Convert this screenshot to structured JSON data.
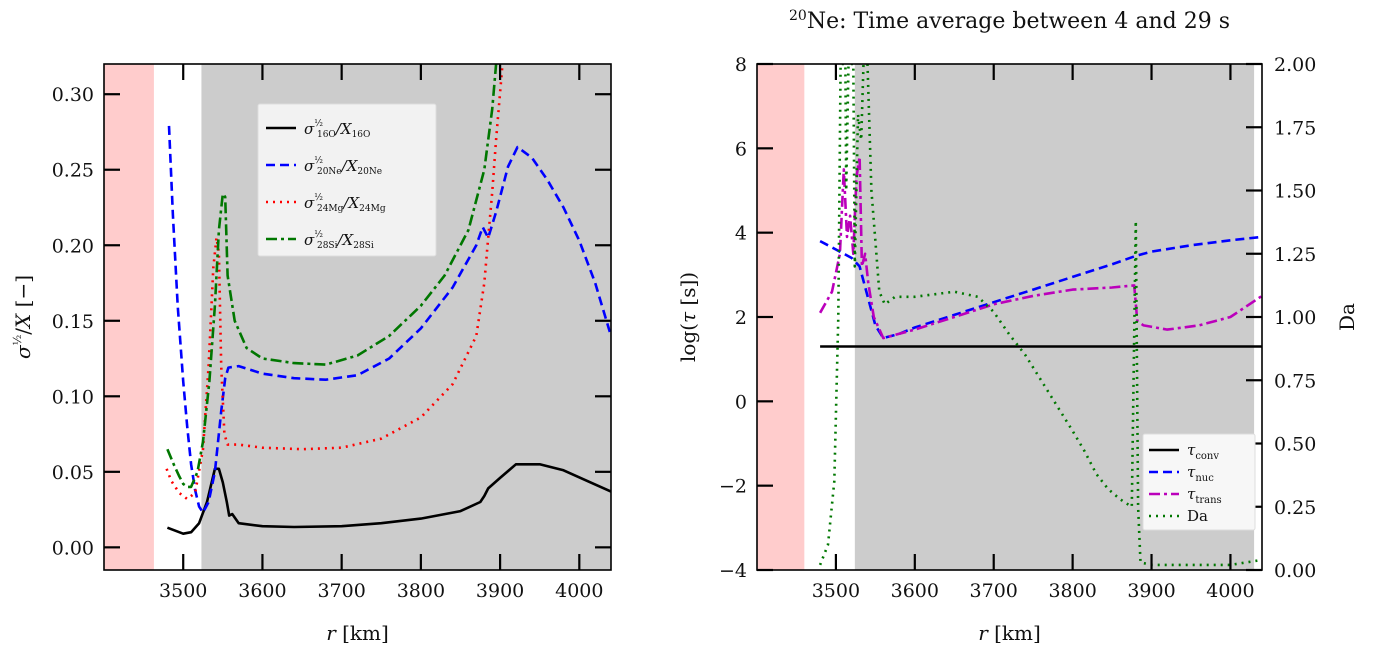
{
  "chart_data": [
    {
      "type": "line",
      "title": "",
      "xlabel": "r [km]",
      "ylabel": "σ^{1/2}/X [−]",
      "xlim": [
        3400,
        4040
      ],
      "ylim": [
        -0.015,
        0.32
      ],
      "xticks": [
        3500,
        3600,
        3700,
        3800,
        3900,
        4000
      ],
      "xtick_labels": [
        "3500",
        "3600",
        "3700",
        "3800",
        "3900",
        "4000"
      ],
      "yticks": [
        0.0,
        0.05,
        0.1,
        0.15,
        0.2,
        0.25,
        0.3
      ],
      "ytick_labels": [
        "0.00",
        "0.05",
        "0.10",
        "0.15",
        "0.20",
        "0.25",
        "0.30"
      ],
      "regions": [
        {
          "x0": 3400,
          "x1": 3463,
          "color": "#ffcccc"
        },
        {
          "x0": 3523,
          "x1": 4040,
          "color": "#cccccc"
        }
      ],
      "legend_position": "upper-center",
      "series": [
        {
          "name": "σ^{1/2}_{16O}/X_{16O}",
          "legend": {
            "main": "σ",
            "sup": "½",
            "sub": "16O",
            "tail": "/X",
            "tail_sub": "16O"
          },
          "color": "#000000",
          "dash": "",
          "points": [
            [
              3480,
              0.013
            ],
            [
              3490,
              0.011
            ],
            [
              3500,
              0.009
            ],
            [
              3510,
              0.01
            ],
            [
              3520,
              0.016
            ],
            [
              3530,
              0.03
            ],
            [
              3540,
              0.052
            ],
            [
              3545,
              0.052
            ],
            [
              3550,
              0.043
            ],
            [
              3555,
              0.03
            ],
            [
              3558,
              0.021
            ],
            [
              3562,
              0.022
            ],
            [
              3570,
              0.016
            ],
            [
              3600,
              0.014
            ],
            [
              3640,
              0.0135
            ],
            [
              3700,
              0.014
            ],
            [
              3750,
              0.016
            ],
            [
              3800,
              0.019
            ],
            [
              3850,
              0.024
            ],
            [
              3875,
              0.03
            ],
            [
              3880,
              0.034
            ],
            [
              3885,
              0.039
            ],
            [
              3900,
              0.046
            ],
            [
              3920,
              0.055
            ],
            [
              3950,
              0.055
            ],
            [
              3980,
              0.051
            ],
            [
              4010,
              0.044
            ],
            [
              4040,
              0.037
            ]
          ]
        },
        {
          "name": "σ^{1/2}_{20Ne}/X_{20Ne}",
          "legend": {
            "main": "σ",
            "sup": "½",
            "sub": "20Ne",
            "tail": "/X",
            "tail_sub": "20Ne"
          },
          "color": "#0000ff",
          "dash": "9,5",
          "points": [
            [
              3482,
              0.279
            ],
            [
              3487,
              0.22
            ],
            [
              3493,
              0.16
            ],
            [
              3500,
              0.11
            ],
            [
              3505,
              0.08
            ],
            [
              3510,
              0.055
            ],
            [
              3515,
              0.038
            ],
            [
              3520,
              0.027
            ],
            [
              3525,
              0.023
            ],
            [
              3532,
              0.03
            ],
            [
              3540,
              0.05
            ],
            [
              3548,
              0.09
            ],
            [
              3553,
              0.112
            ],
            [
              3557,
              0.119
            ],
            [
              3570,
              0.12
            ],
            [
              3600,
              0.115
            ],
            [
              3640,
              0.112
            ],
            [
              3680,
              0.111
            ],
            [
              3720,
              0.114
            ],
            [
              3760,
              0.125
            ],
            [
              3800,
              0.145
            ],
            [
              3840,
              0.172
            ],
            [
              3870,
              0.2
            ],
            [
              3878,
              0.212
            ],
            [
              3885,
              0.205
            ],
            [
              3895,
              0.222
            ],
            [
              3910,
              0.252
            ],
            [
              3922,
              0.265
            ],
            [
              3940,
              0.258
            ],
            [
              3960,
              0.243
            ],
            [
              3980,
              0.225
            ],
            [
              4000,
              0.203
            ],
            [
              4020,
              0.175
            ],
            [
              4040,
              0.14
            ]
          ]
        },
        {
          "name": "σ^{1/2}_{24Mg}/X_{24Mg}",
          "legend": {
            "main": "σ",
            "sup": "½",
            "sub": "24Mg",
            "tail": "/X",
            "tail_sub": "24Mg"
          },
          "color": "#ff0000",
          "dash": "2,5",
          "points": [
            [
              3479,
              0.052
            ],
            [
              3485,
              0.044
            ],
            [
              3495,
              0.036
            ],
            [
              3505,
              0.032
            ],
            [
              3515,
              0.036
            ],
            [
              3525,
              0.065
            ],
            [
              3532,
              0.12
            ],
            [
              3538,
              0.185
            ],
            [
              3542,
              0.205
            ],
            [
              3545,
              0.195
            ],
            [
              3548,
              0.12
            ],
            [
              3552,
              0.075
            ],
            [
              3556,
              0.068
            ],
            [
              3570,
              0.068
            ],
            [
              3600,
              0.066
            ],
            [
              3650,
              0.065
            ],
            [
              3700,
              0.066
            ],
            [
              3750,
              0.072
            ],
            [
              3800,
              0.086
            ],
            [
              3840,
              0.108
            ],
            [
              3870,
              0.14
            ],
            [
              3880,
              0.175
            ],
            [
              3885,
              0.205
            ],
            [
              3890,
              0.235
            ],
            [
              3895,
              0.27
            ],
            [
              3903,
              0.32
            ]
          ]
        },
        {
          "name": "σ^{1/2}_{28Si}/X_{28Si}",
          "legend": {
            "main": "σ",
            "sup": "½",
            "sub": "28Si",
            "tail": "/X",
            "tail_sub": "28Si"
          },
          "color": "#007700",
          "dash": "11,4,3,4",
          "points": [
            [
              3480,
              0.065
            ],
            [
              3488,
              0.055
            ],
            [
              3495,
              0.047
            ],
            [
              3500,
              0.042
            ],
            [
              3505,
              0.04
            ],
            [
              3510,
              0.04
            ],
            [
              3518,
              0.05
            ],
            [
              3525,
              0.07
            ],
            [
              3533,
              0.11
            ],
            [
              3540,
              0.16
            ],
            [
              3545,
              0.21
            ],
            [
              3550,
              0.234
            ],
            [
              3553,
              0.232
            ],
            [
              3556,
              0.18
            ],
            [
              3565,
              0.15
            ],
            [
              3580,
              0.132
            ],
            [
              3600,
              0.125
            ],
            [
              3640,
              0.122
            ],
            [
              3680,
              0.121
            ],
            [
              3720,
              0.127
            ],
            [
              3760,
              0.14
            ],
            [
              3800,
              0.16
            ],
            [
              3830,
              0.18
            ],
            [
              3860,
              0.21
            ],
            [
              3880,
              0.25
            ],
            [
              3890,
              0.29
            ],
            [
              3895,
              0.32
            ]
          ]
        }
      ]
    },
    {
      "type": "line",
      "title": "²⁰Ne: Time average between 4 and 29 s",
      "title_parts": {
        "sup": "20",
        "main": "Ne: Time average between 4 and 29 s"
      },
      "xlabel": "r [km]",
      "ylabel": "log(τ [s])",
      "y2label": "Da",
      "xlim": [
        3400,
        4040
      ],
      "ylim": [
        -4,
        8
      ],
      "y2lim": [
        0,
        2
      ],
      "xticks": [
        3500,
        3600,
        3700,
        3800,
        3900,
        4000
      ],
      "xtick_labels": [
        "3500",
        "3600",
        "3700",
        "3800",
        "3900",
        "4000"
      ],
      "yticks": [
        -4,
        -2,
        0,
        2,
        4,
        6,
        8
      ],
      "ytick_labels": [
        "−4",
        "−2",
        "0",
        "2",
        "4",
        "6",
        "8"
      ],
      "y2ticks": [
        0,
        0.25,
        0.5,
        0.75,
        1.0,
        1.25,
        1.5,
        1.75,
        2.0
      ],
      "y2tick_labels": [
        "0.00",
        "0.25",
        "0.50",
        "0.75",
        "1.00",
        "1.25",
        "1.50",
        "1.75",
        "2.00"
      ],
      "regions": [
        {
          "x0": 3400,
          "x1": 3460,
          "color": "#ffcccc"
        },
        {
          "x0": 3524,
          "x1": 4030,
          "color": "#cccccc"
        }
      ],
      "legend_position": "lower-right",
      "series": [
        {
          "name": "τ_conv",
          "legend": {
            "main": "τ",
            "sub": "conv"
          },
          "color": "#000000",
          "dash": "",
          "axis": "left",
          "points": [
            [
              3480,
              1.3
            ],
            [
              4040,
              1.3
            ]
          ]
        },
        {
          "name": "τ_nuc",
          "legend": {
            "main": "τ",
            "sub": "nuc"
          },
          "color": "#0000ff",
          "dash": "9,5",
          "axis": "left",
          "points": [
            [
              3480,
              3.8
            ],
            [
              3500,
              3.6
            ],
            [
              3520,
              3.4
            ],
            [
              3530,
              3.2
            ],
            [
              3540,
              2.5
            ],
            [
              3550,
              1.8
            ],
            [
              3560,
              1.5
            ],
            [
              3580,
              1.6
            ],
            [
              3600,
              1.75
            ],
            [
              3650,
              2.05
            ],
            [
              3700,
              2.35
            ],
            [
              3750,
              2.65
            ],
            [
              3800,
              2.95
            ],
            [
              3850,
              3.25
            ],
            [
              3880,
              3.45
            ],
            [
              3900,
              3.55
            ],
            [
              3950,
              3.7
            ],
            [
              4000,
              3.82
            ],
            [
              4040,
              3.9
            ]
          ]
        },
        {
          "name": "τ_trans",
          "legend": {
            "main": "τ",
            "sub": "trans"
          },
          "color": "#bb00bb",
          "dash": "11,4,3,4",
          "axis": "left",
          "points": [
            [
              3480,
              2.1
            ],
            [
              3495,
              2.6
            ],
            [
              3505,
              3.5
            ],
            [
              3510,
              5.5
            ],
            [
              3514,
              3.9
            ],
            [
              3518,
              4.4
            ],
            [
              3522,
              3.5
            ],
            [
              3526,
              5.3
            ],
            [
              3530,
              5.8
            ],
            [
              3533,
              3.2
            ],
            [
              3537,
              3.5
            ],
            [
              3541,
              2.8
            ],
            [
              3548,
              2.0
            ],
            [
              3560,
              1.5
            ],
            [
              3600,
              1.7
            ],
            [
              3650,
              2.0
            ],
            [
              3700,
              2.3
            ],
            [
              3750,
              2.5
            ],
            [
              3800,
              2.65
            ],
            [
              3850,
              2.7
            ],
            [
              3878,
              2.75
            ],
            [
              3882,
              1.9
            ],
            [
              3890,
              1.8
            ],
            [
              3920,
              1.7
            ],
            [
              3960,
              1.8
            ],
            [
              4000,
              2.0
            ],
            [
              4040,
              2.5
            ]
          ]
        },
        {
          "name": "Da",
          "legend": {
            "main": "Da",
            "sub": ""
          },
          "color": "#007700",
          "dash": "2,5",
          "axis": "right",
          "points": [
            [
              3480,
              0.02
            ],
            [
              3490,
              0.1
            ],
            [
              3498,
              0.35
            ],
            [
              3503,
              1.0
            ],
            [
              3506,
              2.0
            ],
            [
              3512,
              2.0
            ],
            [
              3513,
              1.5
            ],
            [
              3516,
              2.0
            ],
            [
              3522,
              2.0
            ],
            [
              3524,
              1.2
            ],
            [
              3528,
              1.8
            ],
            [
              3532,
              1.7
            ],
            [
              3535,
              2.0
            ],
            [
              3540,
              2.0
            ],
            [
              3545,
              1.5
            ],
            [
              3550,
              1.3
            ],
            [
              3555,
              1.1
            ],
            [
              3562,
              1.05
            ],
            [
              3575,
              1.08
            ],
            [
              3600,
              1.08
            ],
            [
              3650,
              1.1
            ],
            [
              3680,
              1.08
            ],
            [
              3700,
              1.02
            ],
            [
              3720,
              0.93
            ],
            [
              3740,
              0.85
            ],
            [
              3760,
              0.75
            ],
            [
              3780,
              0.65
            ],
            [
              3800,
              0.55
            ],
            [
              3815,
              0.47
            ],
            [
              3830,
              0.38
            ],
            [
              3845,
              0.32
            ],
            [
              3860,
              0.28
            ],
            [
              3875,
              0.25
            ],
            [
              3880,
              1.38
            ],
            [
              3883,
              0.25
            ],
            [
              3886,
              0.03
            ],
            [
              3900,
              0.02
            ],
            [
              3950,
              0.02
            ],
            [
              4000,
              0.02
            ],
            [
              4040,
              0.04
            ]
          ]
        }
      ]
    }
  ]
}
